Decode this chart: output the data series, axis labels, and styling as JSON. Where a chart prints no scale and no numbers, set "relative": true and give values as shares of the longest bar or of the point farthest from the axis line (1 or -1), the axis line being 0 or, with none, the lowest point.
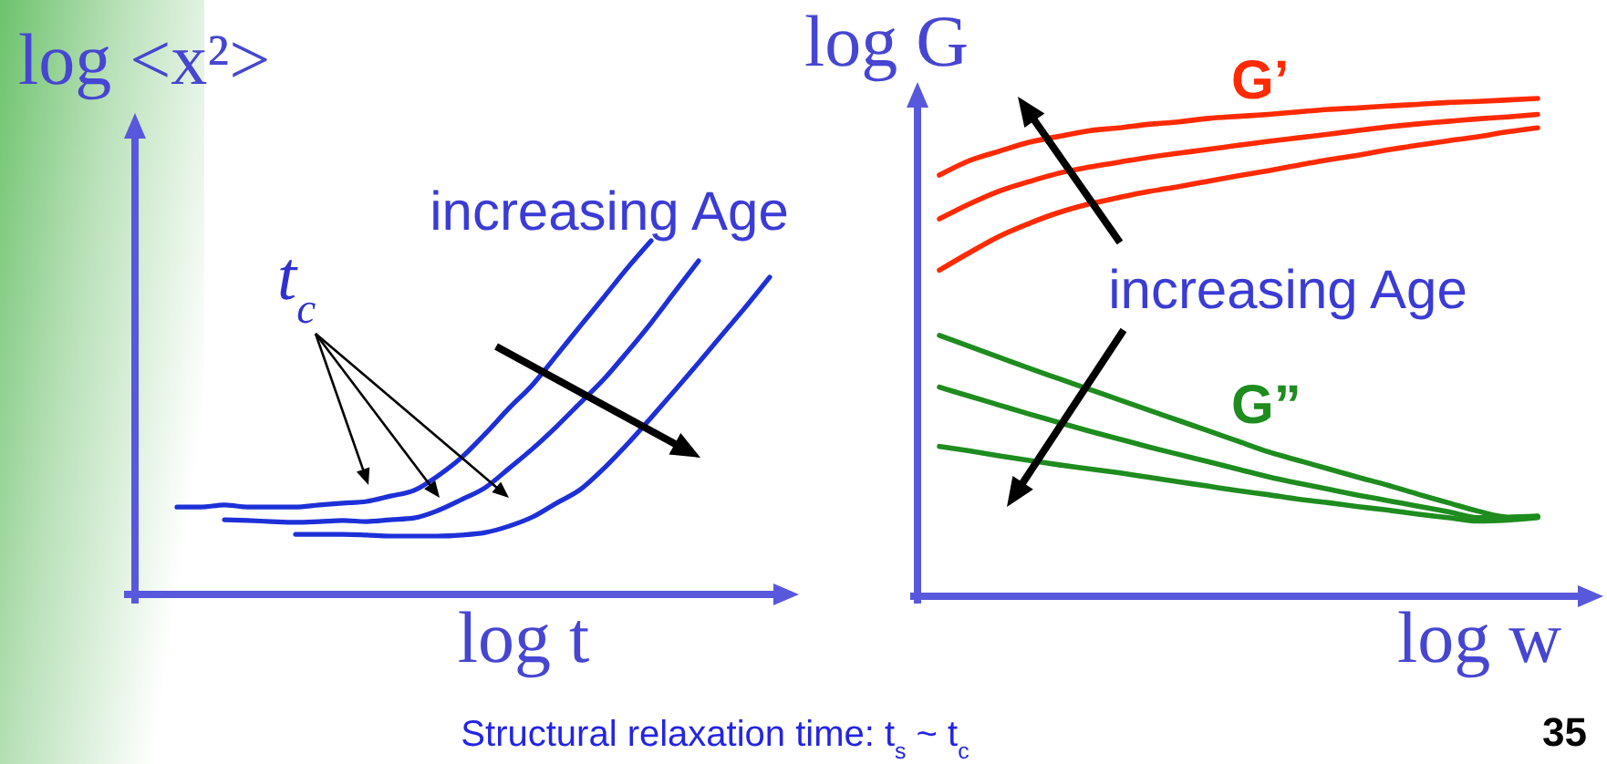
{
  "chart_data": [
    {
      "type": "line",
      "relative": true,
      "tick_labels": false,
      "ylabel": "log <x²>",
      "xlabel": "log t",
      "categories": [
        null,
        null,
        null,
        null,
        null,
        null,
        null,
        null,
        null,
        null,
        null,
        null,
        null,
        null,
        null,
        null,
        null,
        null,
        null,
        null,
        null,
        null,
        null,
        null,
        null,
        null
      ],
      "series": [
        {
          "color": "#1d30d8",
          "values": [
            0.247,
            0.247,
            0.253,
            0.247,
            0.247,
            0.247,
            0.253,
            0.258,
            0.263,
            0.278,
            0.294,
            0.335,
            0.387,
            0.454,
            0.526,
            0.593,
            0.675,
            0.758,
            0.84,
            0.923,
            1.0,
            null,
            null,
            null,
            null,
            null
          ]
        },
        {
          "color": "#1d30d8",
          "values": [
            null,
            null,
            0.211,
            0.209,
            0.206,
            0.204,
            0.206,
            0.209,
            0.206,
            0.211,
            0.216,
            0.237,
            0.268,
            0.302,
            0.356,
            0.412,
            0.474,
            0.541,
            0.608,
            0.686,
            0.768,
            0.856,
            0.943,
            null,
            null,
            null
          ]
        },
        {
          "color": "#1d30d8",
          "values": [
            null,
            null,
            null,
            null,
            null,
            0.17,
            0.17,
            0.17,
            0.168,
            0.165,
            0.165,
            0.165,
            0.168,
            0.175,
            0.193,
            0.219,
            0.258,
            0.296,
            0.356,
            0.425,
            0.5,
            0.577,
            0.655,
            0.735,
            0.814,
            0.897
          ]
        }
      ],
      "annotations": [
        "increasing Age",
        "t$_{c}$",
        "Structural relaxation time: t$_{s}$ ~ t$_{c}$"
      ]
    },
    {
      "type": "line",
      "relative": true,
      "tick_labels": false,
      "ylabel": "log G",
      "xlabel": "log w",
      "categories": [
        null,
        null,
        null,
        null,
        null,
        null,
        null,
        null,
        null,
        null,
        null,
        null,
        null,
        null,
        null,
        null,
        null,
        null,
        null,
        null,
        null
      ],
      "series": [
        {
          "name": "G’",
          "color": "#ff2a00",
          "values": [
            0.846,
            0.875,
            0.894,
            0.912,
            0.924,
            0.935,
            0.941,
            0.948,
            0.953,
            0.96,
            0.964,
            0.968,
            0.973,
            0.978,
            0.981,
            0.985,
            0.988,
            0.992,
            0.994,
            0.997,
            1.0
          ]
        },
        {
          "color": "#ff2a00",
          "values": [
            0.758,
            0.788,
            0.814,
            0.833,
            0.85,
            0.862,
            0.872,
            0.882,
            0.89,
            0.898,
            0.906,
            0.914,
            0.921,
            0.928,
            0.936,
            0.943,
            0.949,
            0.954,
            0.959,
            0.963,
            0.968
          ]
        },
        {
          "color": "#ff2a00",
          "values": [
            0.655,
            0.69,
            0.723,
            0.749,
            0.771,
            0.788,
            0.801,
            0.813,
            0.823,
            0.834,
            0.845,
            0.855,
            0.866,
            0.877,
            0.886,
            0.897,
            0.906,
            0.915,
            0.923,
            0.933,
            0.941
          ]
        },
        {
          "name": "G”",
          "color": "#1e8c1e",
          "values": [
            0.524,
            0.502,
            0.48,
            0.458,
            0.437,
            0.416,
            0.395,
            0.374,
            0.353,
            0.332,
            0.311,
            0.29,
            0.273,
            0.256,
            0.239,
            0.223,
            0.205,
            0.188,
            0.171,
            0.159,
            0.161
          ]
        },
        {
          "color": "#1e8c1e",
          "values": [
            0.42,
            0.402,
            0.384,
            0.366,
            0.349,
            0.332,
            0.316,
            0.3,
            0.285,
            0.27,
            0.255,
            0.24,
            0.227,
            0.215,
            0.203,
            0.192,
            0.181,
            0.17,
            0.158,
            0.158,
            0.159
          ]
        },
        {
          "color": "#1e8c1e",
          "values": [
            0.301,
            0.292,
            0.282,
            0.273,
            0.264,
            0.256,
            0.248,
            0.239,
            0.23,
            0.221,
            0.212,
            0.204,
            0.195,
            0.188,
            0.18,
            0.173,
            0.165,
            0.158,
            0.151,
            0.153,
            0.158
          ]
        }
      ],
      "annotations": [
        "increasing Age",
        "35"
      ]
    }
  ]
}
